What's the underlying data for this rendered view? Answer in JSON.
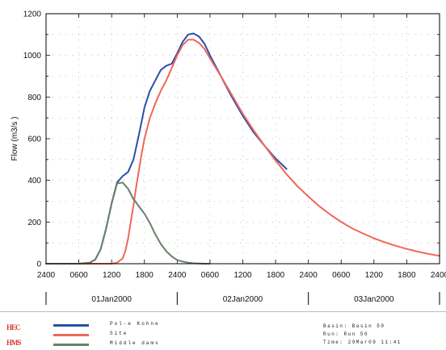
{
  "chart_data": {
    "type": "line",
    "ylabel": "Flow (m3/s   )",
    "xlabel": "",
    "ylim": [
      0,
      1200
    ],
    "xlim": [
      0,
      72
    ],
    "yticks": [
      0,
      200,
      400,
      600,
      800,
      1000,
      1200
    ],
    "x_unit": "hours from 01Jan2000 0000",
    "xtick_labels": [
      "2400",
      "0600",
      "1200",
      "1800",
      "2400",
      "0600",
      "1200",
      "1800",
      "2400",
      "0600",
      "1200",
      "1800",
      "2400"
    ],
    "date_labels": [
      "01Jan2000",
      "02Jan2000",
      "03Jan2000"
    ],
    "grid": true,
    "series": [
      {
        "name": "Pol-e Kohne",
        "color": "#2a4fa8",
        "x": [
          0,
          6,
          8,
          9,
          10,
          11,
          12,
          13,
          14,
          15,
          16,
          17,
          18,
          19,
          20,
          21,
          22,
          23,
          24,
          25,
          26,
          27,
          28,
          29,
          30,
          31,
          32,
          33,
          34,
          36,
          38,
          40,
          42,
          44
        ],
        "y": [
          0,
          0,
          5,
          20,
          70,
          170,
          290,
          390,
          420,
          440,
          500,
          620,
          750,
          830,
          880,
          930,
          950,
          960,
          1010,
          1065,
          1100,
          1105,
          1090,
          1055,
          1000,
          950,
          900,
          850,
          800,
          710,
          630,
          565,
          505,
          455
        ]
      },
      {
        "name": "Site",
        "color": "#f0675a",
        "x": [
          0,
          6,
          12,
          13,
          14,
          14.5,
          15,
          15.5,
          16,
          16.5,
          17,
          17.5,
          18,
          19,
          20,
          21,
          22,
          23,
          24,
          25,
          26,
          27,
          28,
          29,
          30,
          32,
          34,
          36,
          38,
          40,
          42,
          44,
          46,
          48,
          50,
          52,
          54,
          56,
          58,
          60,
          62,
          64,
          66,
          68,
          70,
          72
        ],
        "y": [
          0,
          0,
          0,
          5,
          25,
          60,
          120,
          200,
          280,
          370,
          450,
          530,
          600,
          700,
          770,
          830,
          880,
          940,
          1000,
          1050,
          1075,
          1075,
          1060,
          1030,
          985,
          900,
          810,
          720,
          640,
          565,
          495,
          430,
          372,
          322,
          276,
          236,
          200,
          170,
          145,
          122,
          103,
          86,
          71,
          58,
          47,
          38
        ]
      },
      {
        "name": "Middle dams",
        "color": "#6a7f6a",
        "x": [
          0,
          6,
          8,
          9,
          10,
          11,
          12,
          13,
          14,
          15,
          16,
          17,
          18,
          19,
          20,
          21,
          22,
          23,
          24,
          25,
          26,
          27,
          28,
          29,
          30
        ],
        "y": [
          0,
          0,
          5,
          20,
          70,
          170,
          290,
          385,
          390,
          360,
          310,
          275,
          240,
          195,
          140,
          95,
          60,
          35,
          18,
          10,
          5,
          2,
          1,
          0,
          0
        ]
      }
    ]
  },
  "logos": [
    {
      "name": "hec-logo",
      "text": "HEC"
    },
    {
      "name": "hms-logo",
      "text": "HMS"
    }
  ],
  "run_info": {
    "basin": "Basin: Basin 50",
    "run": "Run:   Run 50",
    "time": "Time:  29Mar09  11:41"
  }
}
